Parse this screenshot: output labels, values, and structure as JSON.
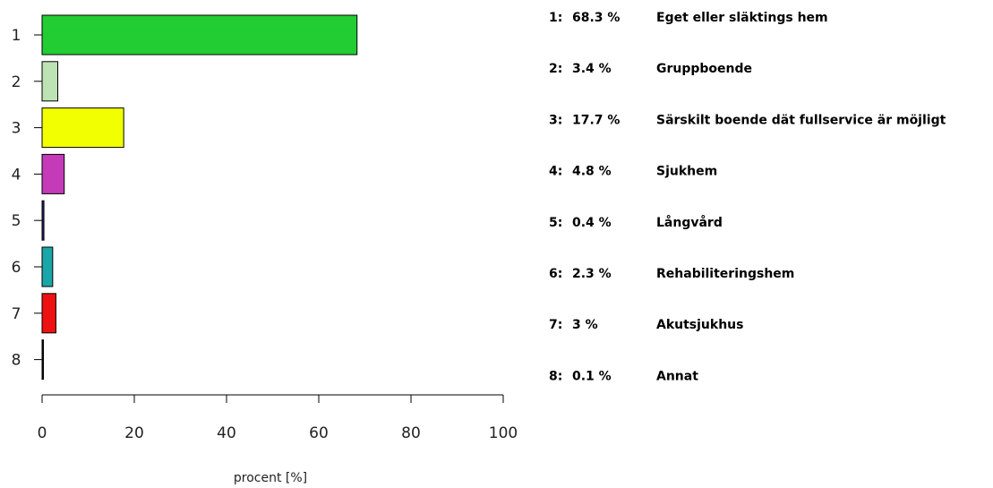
{
  "chart_data": {
    "type": "bar",
    "orientation": "horizontal",
    "categories": [
      "1",
      "2",
      "3",
      "4",
      "5",
      "6",
      "7",
      "8"
    ],
    "values": [
      68.3,
      3.4,
      17.7,
      4.8,
      0.4,
      2.3,
      3,
      0.1
    ],
    "colors": [
      "#22cc33",
      "#bde3b5",
      "#f2ff00",
      "#c43ab8",
      "#2a1b6e",
      "#1aa6a8",
      "#ee1111",
      "#111111"
    ],
    "xlabel": "procent [%]",
    "xlim": [
      0,
      100
    ],
    "xticks": [
      "0",
      "20",
      "40",
      "60",
      "80",
      "100"
    ],
    "grid": false,
    "legend_position": "right",
    "legend": [
      {
        "index": "1:",
        "value": "68.3 %",
        "label": "Eget eller släktings hem"
      },
      {
        "index": "2:",
        "value": "3.4 %",
        "label": "Gruppboende"
      },
      {
        "index": "3:",
        "value": "17.7 %",
        "label": "Särskilt boende dät fullservice är möjligt"
      },
      {
        "index": "4:",
        "value": "4.8 %",
        "label": "Sjukhem"
      },
      {
        "index": "5:",
        "value": "0.4 %",
        "label": "Långvård"
      },
      {
        "index": "6:",
        "value": "2.3 %",
        "label": "Rehabiliteringshem"
      },
      {
        "index": "7:",
        "value": "3 %",
        "label": "Akutsjukhus"
      },
      {
        "index": "8:",
        "value": "0.1 %",
        "label": "Annat"
      }
    ]
  }
}
